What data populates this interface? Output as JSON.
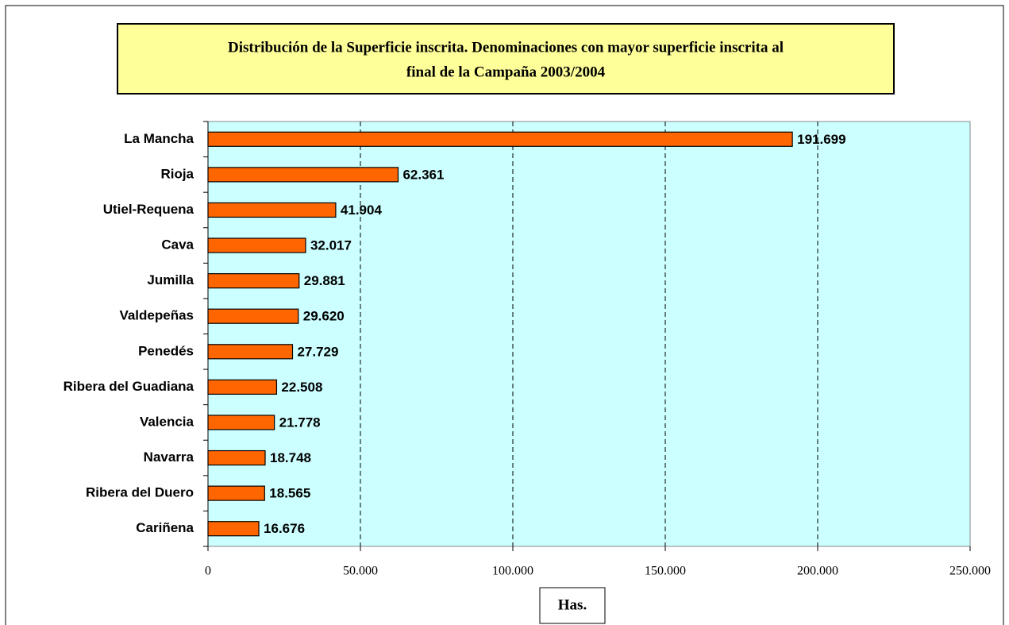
{
  "chart_data": {
    "type": "bar",
    "orientation": "horizontal",
    "title": [
      "Distribución de la Superficie inscrita. Denominaciones con mayor superficie inscrita al",
      "final de la Campaña 2003/2004"
    ],
    "x_label": "Has.",
    "categories": [
      "La Mancha",
      "Rioja",
      "Utiel-Requena",
      "Cava",
      "Jumilla",
      "Valdepeñas",
      "Penedés",
      "Ribera del Guadiana",
      "Valencia",
      "Navarra",
      "Ribera del Duero",
      "Cariñena"
    ],
    "values": [
      191699,
      62361,
      41904,
      32017,
      29881,
      29620,
      27729,
      22508,
      21778,
      18748,
      18565,
      16676
    ],
    "value_labels": [
      "191.699",
      "62.361",
      "41.904",
      "32.017",
      "29.881",
      "29.620",
      "27.729",
      "22.508",
      "21.778",
      "18.748",
      "18.565",
      "16.676"
    ],
    "color": "#ff6600",
    "xlim": [
      0,
      250000
    ],
    "xticks": [
      0,
      {
        "value": 50000,
        "label": "50.000"
      },
      {
        "value": 100000,
        "label": "100.000"
      },
      {
        "value": 150000,
        "label": "150.000"
      },
      {
        "value": 200000,
        "label": "200.000"
      },
      {
        "value": 250000,
        "label": "250.000"
      }
    ],
    "grid": true
  }
}
